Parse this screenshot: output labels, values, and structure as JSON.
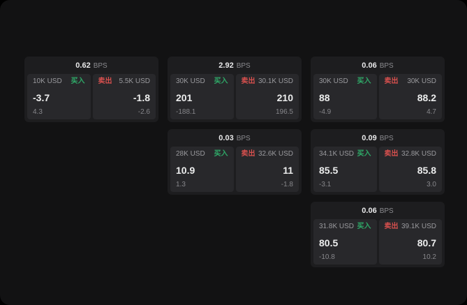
{
  "colors": {
    "buy": "#2fa968",
    "sell": "#d8504e",
    "card_bg": "#1d1d1f",
    "panel_bg": "#28282b",
    "window_bg": "#121213"
  },
  "cards": [
    {
      "bps_value": "0.62",
      "bps_label": "BPS",
      "buy": {
        "size": "10K USD",
        "label": "买入",
        "price": "-3.7",
        "delta": "4.3"
      },
      "sell": {
        "size": "5.5K USD",
        "label": "卖出",
        "price": "-1.8",
        "delta": "-2.6"
      },
      "grid": {
        "col": 1,
        "row": 1
      }
    },
    {
      "bps_value": "2.92",
      "bps_label": "BPS",
      "buy": {
        "size": "30K USD",
        "label": "买入",
        "price": "201",
        "delta": "-188.1"
      },
      "sell": {
        "size": "30.1K USD",
        "label": "卖出",
        "price": "210",
        "delta": "196.5"
      },
      "grid": {
        "col": 2,
        "row": 1
      }
    },
    {
      "bps_value": "0.06",
      "bps_label": "BPS",
      "buy": {
        "size": "30K USD",
        "label": "买入",
        "price": "88",
        "delta": "-4.9"
      },
      "sell": {
        "size": "30K USD",
        "label": "卖出",
        "price": "88.2",
        "delta": "4.7"
      },
      "grid": {
        "col": 3,
        "row": 1
      }
    },
    {
      "bps_value": "0.03",
      "bps_label": "BPS",
      "buy": {
        "size": "28K USD",
        "label": "买入",
        "price": "10.9",
        "delta": "1.3"
      },
      "sell": {
        "size": "32.6K USD",
        "label": "卖出",
        "price": "11",
        "delta": "-1.8"
      },
      "grid": {
        "col": 2,
        "row": 2
      }
    },
    {
      "bps_value": "0.09",
      "bps_label": "BPS",
      "buy": {
        "size": "34.1K USD",
        "label": "买入",
        "price": "85.5",
        "delta": "-3.1"
      },
      "sell": {
        "size": "32.8K USD",
        "label": "卖出",
        "price": "85.8",
        "delta": "3.0"
      },
      "grid": {
        "col": 3,
        "row": 2
      }
    },
    {
      "bps_value": "0.06",
      "bps_label": "BPS",
      "buy": {
        "size": "31.8K USD",
        "label": "买入",
        "price": "80.5",
        "delta": "-10.8"
      },
      "sell": {
        "size": "39.1K USD",
        "label": "卖出",
        "price": "80.7",
        "delta": "10.2"
      },
      "grid": {
        "col": 3,
        "row": 3
      }
    }
  ]
}
